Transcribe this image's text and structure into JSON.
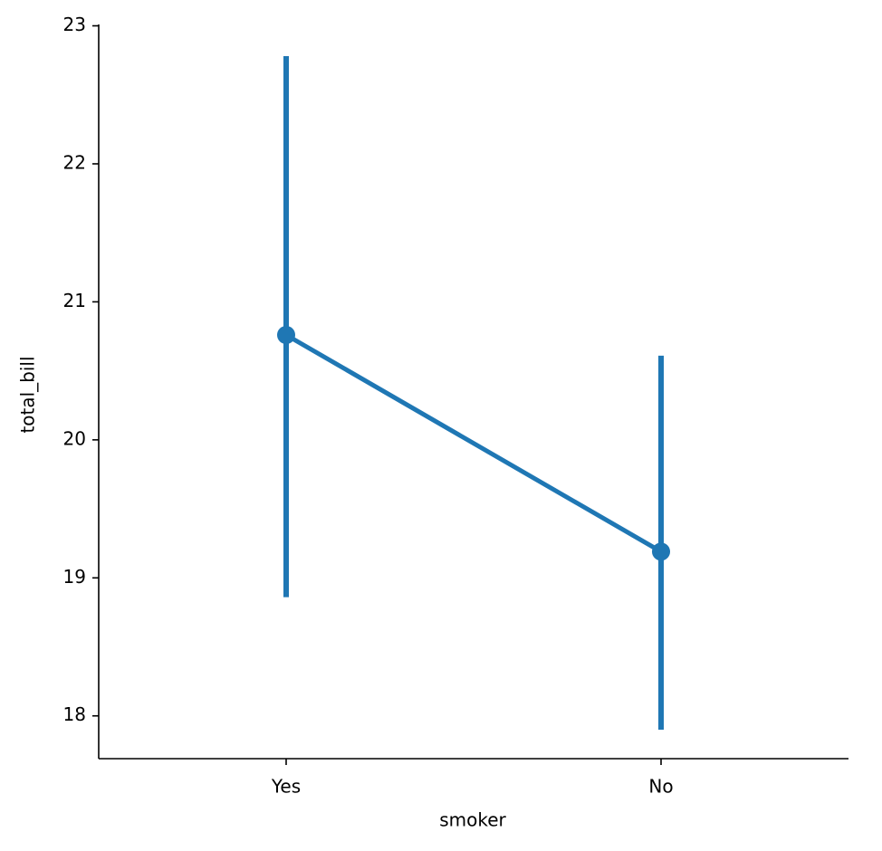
{
  "chart_data": {
    "type": "point",
    "x_label": "smoker",
    "y_label": "total_bill",
    "categories": [
      "Yes",
      "No"
    ],
    "series": [
      {
        "color": "#1f77b4",
        "values": [
          20.76,
          19.19
        ],
        "ci_lower": [
          18.86,
          17.9
        ],
        "ci_upper": [
          22.78,
          20.61
        ]
      }
    ],
    "ylim": [
      17.69,
      23.01
    ],
    "yticks": [
      18,
      19,
      20,
      21,
      22,
      23
    ]
  }
}
